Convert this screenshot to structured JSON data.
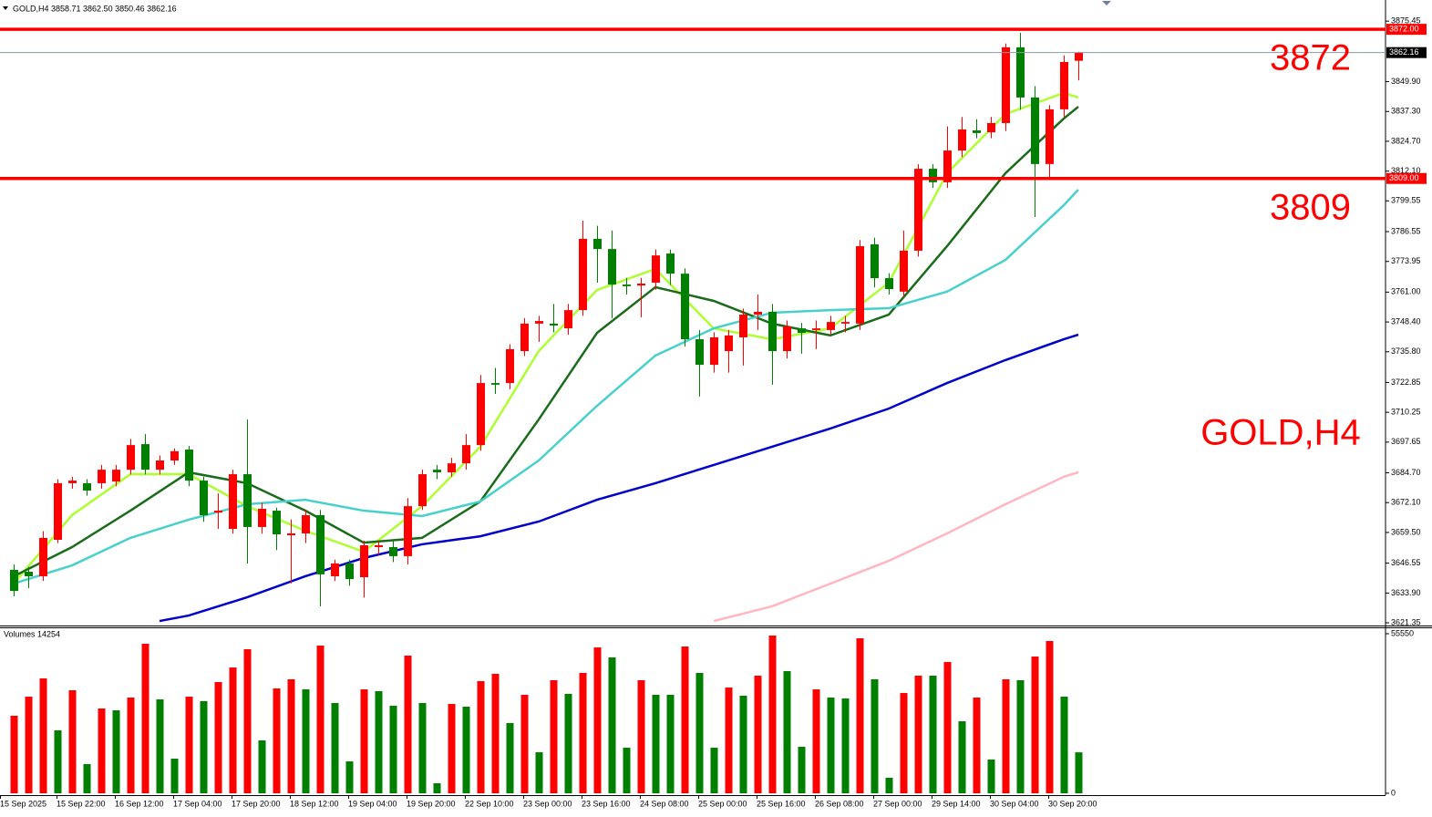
{
  "chart_data": [
    {
      "type": "candlestick",
      "title": "GOLD,H4  3858.71 3862.50 3850.46 3862.16",
      "annotation": "GOLD,H4",
      "up_color": "#ff0000",
      "down_color": "#008000",
      "categories": [
        "15 Sep 2025",
        null,
        null,
        "15 Sep 22:00",
        null,
        null,
        null,
        "16 Sep 12:00",
        null,
        null,
        null,
        "17 Sep 04:00",
        null,
        null,
        null,
        "17 Sep 20:00",
        null,
        null,
        null,
        "18 Sep 12:00",
        null,
        null,
        null,
        "19 Sep 04:00",
        null,
        null,
        null,
        "19 Sep 20:00",
        null,
        null,
        null,
        "22 Sep 10:00",
        null,
        null,
        null,
        "23 Sep 00:00",
        null,
        null,
        null,
        "23 Sep 16:00",
        null,
        null,
        null,
        "24 Sep 08:00",
        null,
        null,
        null,
        "25 Sep 00:00",
        null,
        null,
        null,
        "25 Sep 16:00",
        null,
        null,
        null,
        "26 Sep 08:00",
        null,
        null,
        null,
        "27 Sep 00:00",
        null,
        null,
        null,
        "29 Sep 14:00",
        null,
        null,
        null,
        "30 Sep 04:00",
        null,
        null,
        null,
        "30 Sep 20:00",
        null,
        null
      ],
      "open": [
        3643.7,
        3642.9,
        3641.0,
        3656.4,
        3680.3,
        3680.3,
        3680.3,
        3681.0,
        3686.0,
        3696.8,
        3686.0,
        3689.9,
        3694.5,
        3681.4,
        3667.9,
        3661.0,
        3684.1,
        3661.8,
        3668.7,
        3658.3,
        3659.1,
        3666.8,
        3641.0,
        3646.4,
        3640.6,
        3653.3,
        3653.3,
        3649.5,
        3670.6,
        3686.0,
        3684.9,
        3688.7,
        3696.4,
        3722.6,
        3722.6,
        3736.1,
        3747.7,
        3747.7,
        3745.7,
        3753.4,
        3783.5,
        3779.2,
        3764.2,
        3763.8,
        3765.0,
        3777.3,
        3768.8,
        3741.1,
        3730.3,
        3736.1,
        3741.9,
        3751.5,
        3752.7,
        3736.1,
        3745.7,
        3745.0,
        3745.0,
        3747.7,
        3747.7,
        3781.2,
        3766.9,
        3761.2,
        3778.5,
        3813.1,
        3807.4,
        3820.8,
        3829.3,
        3828.5,
        3832.4,
        3864.4,
        3843.2,
        3815.1,
        3838.2,
        3858.71
      ],
      "high": [
        3646.0,
        3645,
        3660,
        3682,
        3683,
        3682,
        3688,
        3688,
        3699,
        3701,
        3692,
        3695,
        3696,
        3683,
        3676,
        3686,
        3707.2,
        3672,
        3670,
        3665,
        3669,
        3669,
        3648,
        3648,
        3656,
        3656,
        3656,
        3674,
        3686,
        3688,
        3691,
        3701,
        3726,
        3729,
        3739,
        3750,
        3751,
        3756,
        3756,
        3791.2,
        3789,
        3787,
        3767,
        3767,
        3779,
        3779,
        3771,
        3745,
        3744,
        3745,
        3754,
        3760,
        3756,
        3749,
        3748,
        3749,
        3751,
        3751,
        3783,
        3784,
        3769,
        3787,
        3815,
        3815,
        3831,
        3835,
        3834,
        3835,
        3866,
        3870.5,
        3848,
        3840,
        3861,
        3862.5
      ],
      "low": [
        3632.5,
        3636,
        3639,
        3655,
        3678,
        3675,
        3678,
        3679,
        3684,
        3684,
        3684,
        3688,
        3679,
        3664,
        3661,
        3659,
        3646.4,
        3659,
        3652,
        3638,
        3655,
        3628.3,
        3639,
        3637,
        3632.0,
        3650,
        3647,
        3646,
        3669,
        3682,
        3683,
        3686,
        3694,
        3718,
        3720,
        3734,
        3740,
        3744,
        3743,
        3751,
        3765,
        3750,
        3760,
        3750.4,
        3762,
        3764,
        3738,
        3716.9,
        3727,
        3727,
        3730,
        3745,
        3721.9,
        3733,
        3735,
        3737,
        3743,
        3744,
        3745,
        3763,
        3760,
        3759,
        3776,
        3805,
        3805,
        3818,
        3826,
        3826,
        3829,
        3838,
        3792.7,
        3809.3,
        3835,
        3850.46
      ],
      "close": [
        3634.8,
        3641.0,
        3657.2,
        3680.3,
        3681.4,
        3677.2,
        3686.0,
        3686.0,
        3696.4,
        3686.0,
        3689.9,
        3693.8,
        3681.4,
        3666.8,
        3668.7,
        3684.1,
        3661.8,
        3669.5,
        3658.7,
        3659.1,
        3666.8,
        3641.8,
        3646.4,
        3639.8,
        3654.1,
        3654.1,
        3649.5,
        3670.6,
        3684.1,
        3684.9,
        3688.7,
        3696.4,
        3722.6,
        3721.9,
        3736.9,
        3747.7,
        3748.8,
        3746.9,
        3753.4,
        3783.5,
        3779.2,
        3764.2,
        3763.5,
        3764.6,
        3776.5,
        3768.8,
        3741.1,
        3730.3,
        3741.9,
        3742.7,
        3751.5,
        3752.7,
        3736.1,
        3746.5,
        3743.8,
        3745.7,
        3748.4,
        3748.4,
        3780.4,
        3766.9,
        3762.3,
        3778.5,
        3813.1,
        3807.4,
        3820.8,
        3829.7,
        3828.2,
        3832.4,
        3864.4,
        3843.2,
        3815.1,
        3838.2,
        3858.2,
        3862.16
      ],
      "overlays": [
        {
          "color": "#adff2f",
          "x": [
            0,
            4,
            8,
            12,
            16,
            20,
            24,
            28,
            32,
            36,
            40,
            44,
            48,
            52,
            56,
            60,
            64,
            68,
            72,
            73
          ],
          "values": [
            3637.9,
            3666.8,
            3684.1,
            3684.1,
            3670.6,
            3660.2,
            3651.4,
            3670.6,
            3695.7,
            3736.1,
            3761.9,
            3770.8,
            3745.7,
            3741.1,
            3745.7,
            3765.0,
            3811.2,
            3836.2,
            3845.1,
            3843.2
          ]
        },
        {
          "color": "#1a6b1a",
          "x": [
            0,
            4,
            8,
            12,
            16,
            20,
            24,
            28,
            32,
            36,
            40,
            44,
            48,
            52,
            56,
            60,
            64,
            68,
            72,
            73
          ],
          "values": [
            3641.0,
            3653.3,
            3668.7,
            3684.9,
            3680.3,
            3668.7,
            3655.2,
            3657.2,
            3672.6,
            3707.2,
            3743.8,
            3763.1,
            3757.3,
            3747.7,
            3742.7,
            3751.5,
            3780.4,
            3811.2,
            3834.3,
            3839.3
          ]
        },
        {
          "color": "#48d1cc",
          "x": [
            0,
            4,
            8,
            12,
            16,
            20,
            24,
            28,
            32,
            36,
            40,
            44,
            48,
            52,
            56,
            60,
            64,
            68,
            72,
            73
          ],
          "values": [
            3637.9,
            3645.6,
            3657.2,
            3664.9,
            3671.4,
            3673.3,
            3668.7,
            3666.4,
            3672.6,
            3689.9,
            3713.0,
            3734.2,
            3745.7,
            3752.3,
            3753.4,
            3754.2,
            3761.2,
            3774.6,
            3797.7,
            3804.3
          ]
        },
        {
          "color": "#0000cd",
          "x": [
            10,
            12,
            16,
            20,
            24,
            28,
            32,
            36,
            40,
            44,
            48,
            52,
            56,
            60,
            64,
            68,
            72,
            73
          ],
          "values": [
            3622.1,
            3624.4,
            3632.1,
            3641.0,
            3648.7,
            3654.5,
            3657.9,
            3664.1,
            3673.3,
            3680.3,
            3688.0,
            3695.7,
            3703.4,
            3711.8,
            3722.6,
            3732.3,
            3741.1,
            3743.0
          ]
        },
        {
          "color": "#ffb6c1",
          "x": [
            48,
            52,
            56,
            60,
            64,
            68,
            72,
            73
          ],
          "values": [
            3622.1,
            3628.3,
            3637.9,
            3647.5,
            3659.1,
            3671.4,
            3683.0,
            3684.9
          ]
        }
      ],
      "hlines": [
        {
          "value": 3872,
          "label": "3872.00",
          "annotation": "3872",
          "color": "#ff0000"
        },
        {
          "value": 3809,
          "label": "3809.00",
          "annotation": "3809",
          "color": "#ff0000"
        }
      ],
      "current_price": {
        "value": 3862.16,
        "color": "#8a9aaa"
      },
      "ylim": [
        3621.35,
        3882.45
      ],
      "yticks": [
        3875.45,
        {
          "value": 3849.9,
          "label": "3849.90"
        },
        {
          "value": 3837.3,
          "label": "3837.30"
        },
        {
          "value": 3824.7,
          "label": "3824.70"
        },
        {
          "value": 3812.1,
          "label": "3812.10"
        },
        3799.55,
        3786.55,
        3773.95,
        {
          "value": 3761,
          "label": "3761.00"
        },
        {
          "value": 3748.4,
          "label": "3748.40"
        },
        {
          "value": 3735.8,
          "label": "3735.80"
        },
        3722.85,
        3710.25,
        3697.65,
        {
          "value": 3684.7,
          "label": "3684.70"
        },
        {
          "value": 3672.1,
          "label": "3672.10"
        },
        {
          "value": 3659.5,
          "label": "3659.50"
        },
        3646.55,
        {
          "value": 3633.9,
          "label": "3633.90"
        },
        3621.35
      ]
    },
    {
      "type": "bar",
      "title": "Volumes 14254",
      "up_color": "#ff0000",
      "down_color": "#008000",
      "values": [
        26980,
        33640,
        39990,
        21900,
        35870,
        10160,
        29520,
        28880,
        33330,
        52050,
        32690,
        12060,
        33640,
        32060,
        38720,
        43800,
        50150,
        18410,
        36500,
        39680,
        36180,
        51420,
        31420,
        11110,
        36180,
        35550,
        30470,
        47930,
        31420,
        3490,
        31110,
        30150,
        39040,
        41580,
        24440,
        34280,
        14280,
        39360,
        34600,
        41900,
        50780,
        47290,
        15870,
        39360,
        34280,
        34280,
        51100,
        41900,
        15870,
        36820,
        33960,
        40940,
        54910,
        42530,
        16190,
        36180,
        33330,
        33010,
        53960,
        39680,
        5400,
        34910,
        40940,
        40940,
        45710,
        25070,
        33330,
        11740,
        39680,
        39360,
        47610,
        53010,
        33640,
        14254
      ],
      "ylim": [
        0,
        55550
      ],
      "yticks": [
        55550,
        0
      ]
    }
  ]
}
